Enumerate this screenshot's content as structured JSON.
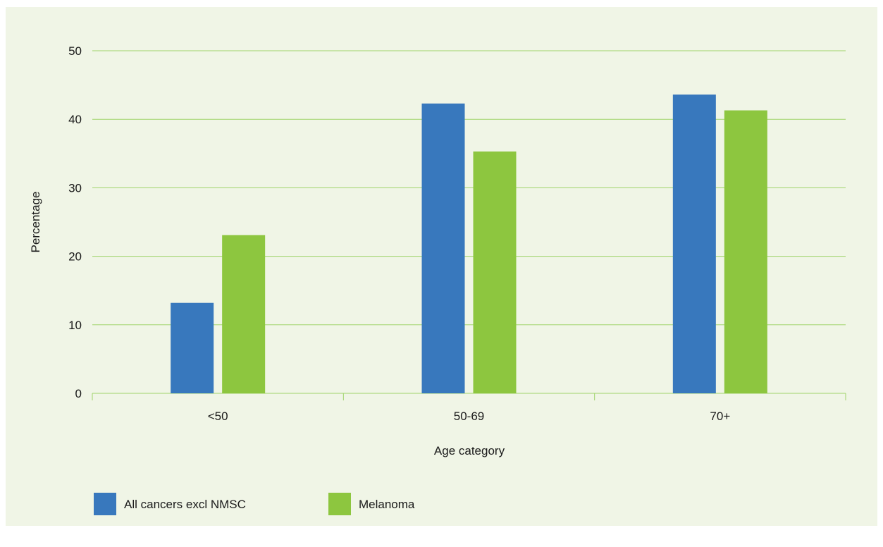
{
  "chart_data": {
    "type": "bar",
    "title": "",
    "xlabel": "Age category",
    "ylabel": "Percentage",
    "ylim": [
      0,
      50
    ],
    "yticks": [
      0,
      10,
      20,
      30,
      40,
      50
    ],
    "categories": [
      "<50",
      "50-69",
      "70+"
    ],
    "series": [
      {
        "name": "All cancers excl NMSC",
        "color": "#3878bd",
        "values": [
          13.2,
          42.3,
          43.6
        ]
      },
      {
        "name": "Melanoma",
        "color": "#8dc63f",
        "values": [
          23.1,
          35.3,
          41.3
        ]
      }
    ],
    "grid": true,
    "gridColor": "#9fd36a",
    "legend_position": "bottom-left"
  }
}
